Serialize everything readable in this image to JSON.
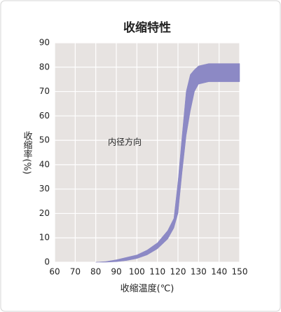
{
  "chart_data": {
    "type": "band",
    "title": "收缩特性",
    "x_label": "收缩温度(℃)",
    "y_label": "收缩率(%)",
    "annotation": "内径方向",
    "x": [
      80,
      85,
      90,
      95,
      100,
      105,
      110,
      115,
      118,
      120,
      122,
      124,
      126,
      128,
      130,
      135,
      140,
      150
    ],
    "upper": [
      0,
      0.3,
      1,
      2,
      3,
      5,
      8,
      13,
      18,
      33,
      52,
      70,
      77,
      79,
      80.5,
      81.5,
      81.5,
      81.5
    ],
    "lower": [
      0,
      0,
      0.2,
      0.7,
      1.5,
      3,
      5.5,
      9.5,
      14,
      20,
      37,
      52,
      62,
      70,
      73,
      74,
      74,
      74
    ],
    "color": "#8c89c5",
    "background": "#e7e3e1",
    "grid": true,
    "xlim": [
      60,
      150
    ],
    "xticks": [
      60,
      70,
      80,
      90,
      100,
      110,
      120,
      130,
      140,
      150
    ],
    "ylim": [
      0,
      90
    ],
    "yticks": [
      0,
      10,
      20,
      30,
      40,
      50,
      60,
      70,
      80,
      90
    ]
  }
}
